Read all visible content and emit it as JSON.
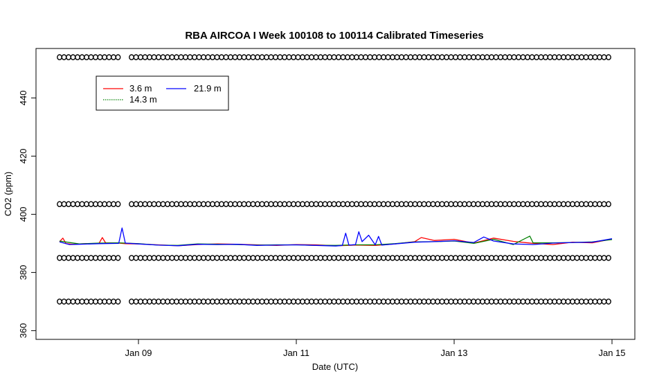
{
  "chart_data": {
    "type": "line",
    "title": "RBA AIRCOA I  Week 100108 to 100114  Calibrated Timeseries",
    "xlabel": "Date (UTC)",
    "ylabel": "CO2 (ppm)",
    "xlim": [
      "2010-01-08 00:00",
      "2010-01-15 00:00"
    ],
    "ylim": [
      357,
      457
    ],
    "x_ticks": [
      "Jan 09",
      "Jan 11",
      "Jan 13",
      "Jan 15"
    ],
    "x_tick_dates": [
      "2010-01-09",
      "2010-01-11",
      "2010-01-13",
      "2010-01-15"
    ],
    "y_ticks": [
      360,
      380,
      400,
      420,
      440
    ],
    "grid": false,
    "legend_position": "top-left",
    "series": [
      {
        "name": "3.6 m",
        "color": "#ff0000",
        "x": [
          "2010-01-08 00:00",
          "2010-01-08 01:00",
          "2010-01-08 02:00",
          "2010-01-08 04:00",
          "2010-01-08 08:00",
          "2010-01-08 12:00",
          "2010-01-08 13:00",
          "2010-01-08 14:00",
          "2010-01-08 18:00",
          "2010-01-08 20:00",
          "2010-01-09 00:00",
          "2010-01-09 06:00",
          "2010-01-09 12:00",
          "2010-01-09 18:00",
          "2010-01-10 00:00",
          "2010-01-10 06:00",
          "2010-01-10 12:00",
          "2010-01-10 18:00",
          "2010-01-11 00:00",
          "2010-01-11 06:00",
          "2010-01-11 12:00",
          "2010-01-11 18:00",
          "2010-01-12 00:00",
          "2010-01-12 06:00",
          "2010-01-12 12:00",
          "2010-01-12 14:00",
          "2010-01-12 18:00",
          "2010-01-13 00:00",
          "2010-01-13 06:00",
          "2010-01-13 12:00",
          "2010-01-13 18:00",
          "2010-01-14 00:00",
          "2010-01-14 06:00",
          "2010-01-14 12:00",
          "2010-01-14 18:00",
          "2010-01-15 00:00"
        ],
        "y": [
          390.6,
          391.8,
          389.9,
          389.7,
          389.9,
          390.0,
          392.0,
          390.2,
          390.1,
          389.9,
          389.8,
          389.5,
          389.2,
          389.6,
          389.8,
          389.7,
          389.5,
          389.3,
          389.6,
          389.5,
          389.2,
          389.4,
          389.3,
          389.8,
          390.6,
          392.0,
          391.0,
          391.4,
          390.1,
          391.8,
          390.7,
          390.0,
          389.6,
          390.4,
          390.2,
          391.5
        ]
      },
      {
        "name": "14.3 m",
        "color": "#008000",
        "x": [
          "2010-01-08 00:00",
          "2010-01-08 06:00",
          "2010-01-08 12:00",
          "2010-01-08 18:00",
          "2010-01-09 00:00",
          "2010-01-09 06:00",
          "2010-01-09 12:00",
          "2010-01-09 18:00",
          "2010-01-10 00:00",
          "2010-01-10 06:00",
          "2010-01-10 12:00",
          "2010-01-10 18:00",
          "2010-01-11 00:00",
          "2010-01-11 06:00",
          "2010-01-11 12:00",
          "2010-01-11 18:00",
          "2010-01-12 00:00",
          "2010-01-12 06:00",
          "2010-01-12 12:00",
          "2010-01-12 18:00",
          "2010-01-13 00:00",
          "2010-01-13 06:00",
          "2010-01-13 12:00",
          "2010-01-13 18:00",
          "2010-01-13 23:00",
          "2010-01-14 00:00",
          "2010-01-14 06:00",
          "2010-01-14 12:00",
          "2010-01-14 18:00",
          "2010-01-15 00:00"
        ],
        "y": [
          390.8,
          389.8,
          390.1,
          390.2,
          389.9,
          389.4,
          389.3,
          389.8,
          389.7,
          389.6,
          389.4,
          389.5,
          389.5,
          389.3,
          389.3,
          389.5,
          389.5,
          389.9,
          390.5,
          390.6,
          390.8,
          390.0,
          391.4,
          389.6,
          392.5,
          390.2,
          390.2,
          390.3,
          390.5,
          391.3
        ]
      },
      {
        "name": "21.9 m",
        "color": "#0000ff",
        "x": [
          "2010-01-08 00:00",
          "2010-01-08 03:00",
          "2010-01-08 06:00",
          "2010-01-08 12:00",
          "2010-01-08 18:00",
          "2010-01-08 19:00",
          "2010-01-08 20:00",
          "2010-01-09 00:00",
          "2010-01-09 06:00",
          "2010-01-09 12:00",
          "2010-01-09 18:00",
          "2010-01-10 00:00",
          "2010-01-10 06:00",
          "2010-01-10 12:00",
          "2010-01-10 18:00",
          "2010-01-11 00:00",
          "2010-01-11 06:00",
          "2010-01-11 12:00",
          "2010-01-11 14:00",
          "2010-01-11 15:00",
          "2010-01-11 16:00",
          "2010-01-11 18:00",
          "2010-01-11 19:00",
          "2010-01-11 20:00",
          "2010-01-11 22:00",
          "2010-01-12 00:00",
          "2010-01-12 01:00",
          "2010-01-12 02:00",
          "2010-01-12 06:00",
          "2010-01-12 12:00",
          "2010-01-12 18:00",
          "2010-01-13 00:00",
          "2010-01-13 06:00",
          "2010-01-13 09:00",
          "2010-01-13 12:00",
          "2010-01-13 18:00",
          "2010-01-14 00:00",
          "2010-01-14 06:00",
          "2010-01-14 12:00",
          "2010-01-14 18:00",
          "2010-01-15 00:00"
        ],
        "y": [
          390.5,
          389.6,
          389.7,
          389.9,
          390.0,
          395.3,
          390.1,
          389.8,
          389.4,
          389.2,
          389.7,
          389.6,
          389.7,
          389.3,
          389.4,
          389.5,
          389.3,
          389.1,
          389.3,
          393.5,
          389.4,
          389.6,
          394.0,
          390.6,
          392.8,
          389.5,
          392.4,
          389.4,
          389.8,
          390.4,
          390.6,
          390.9,
          390.3,
          392.2,
          390.8,
          389.8,
          389.6,
          390.1,
          390.3,
          390.4,
          391.6
        ]
      }
    ],
    "marker_rows": [
      {
        "y": 454,
        "marker": "circle",
        "gaps": [
          [
            "2010-01-08 19:00",
            "2010-01-08 21:00"
          ],
          [
            "2010-01-12 00:00",
            "2010-01-12 01:00"
          ]
        ]
      },
      {
        "y": 403.5,
        "marker": "circle",
        "gaps": [
          [
            "2010-01-08 19:00",
            "2010-01-08 21:00"
          ],
          [
            "2010-01-12 00:00",
            "2010-01-12 01:00"
          ]
        ]
      },
      {
        "y": 385,
        "marker": "circle",
        "gaps": [
          [
            "2010-01-08 19:00",
            "2010-01-08 21:00"
          ],
          [
            "2010-01-12 00:00",
            "2010-01-12 01:00"
          ]
        ]
      },
      {
        "y": 370,
        "marker": "circle",
        "gaps": [
          [
            "2010-01-08 19:00",
            "2010-01-08 21:00"
          ]
        ]
      }
    ]
  }
}
